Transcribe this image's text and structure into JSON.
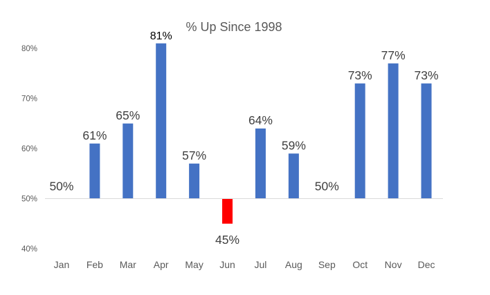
{
  "chart_data": {
    "type": "bar",
    "title": "% Up Since 1998",
    "xlabel": "",
    "ylabel": "",
    "categories": [
      "Jan",
      "Feb",
      "Mar",
      "Apr",
      "May",
      "Jun",
      "Jul",
      "Aug",
      "Sep",
      "Oct",
      "Nov",
      "Dec"
    ],
    "values": [
      50,
      61,
      65,
      81,
      57,
      45,
      64,
      59,
      50,
      73,
      77,
      73
    ],
    "data_labels": [
      "50%",
      "61%",
      "65%",
      "81%",
      "57%",
      "45%",
      "64%",
      "59%",
      "50%",
      "73%",
      "77%",
      "73%"
    ],
    "baseline": 50,
    "ylim": [
      40,
      80
    ],
    "yticks": [
      40,
      50,
      60,
      70,
      80
    ],
    "ytick_labels": [
      "40%",
      "50%",
      "60%",
      "70%",
      "80%"
    ],
    "grid": false,
    "legend": "none",
    "colors": {
      "positive": "#4472C4",
      "negative": "#FF0000",
      "axis": "#D9D9D9"
    }
  }
}
